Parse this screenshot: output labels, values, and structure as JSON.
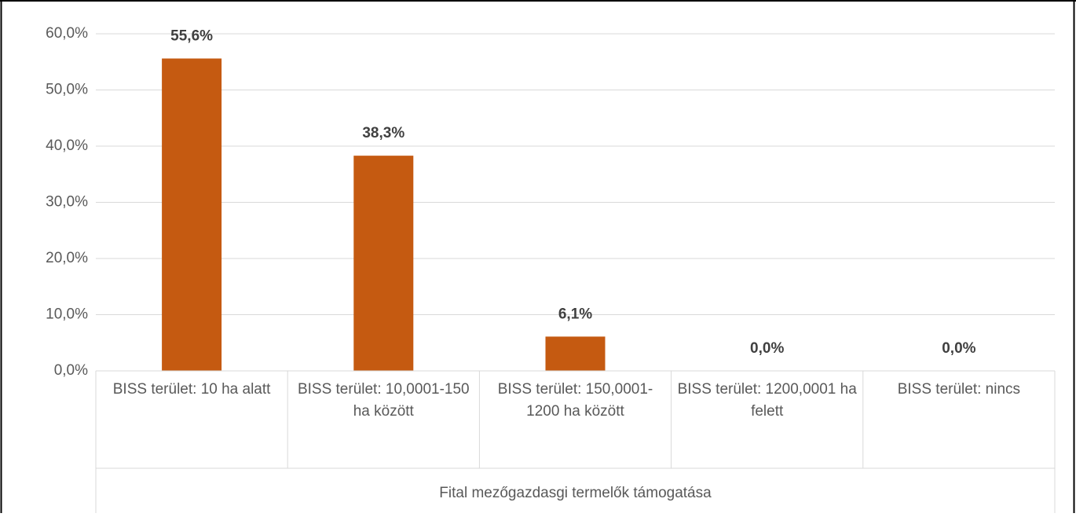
{
  "chart_data": {
    "type": "bar",
    "categories": [
      "BISS terület: 10 ha alatt",
      "BISS terület: 10,0001-150 ha között",
      "BISS terület: 150,0001-1200 ha között",
      "BISS terület: 1200,0001 ha felett",
      "BISS terület: nincs"
    ],
    "values": [
      55.6,
      38.3,
      6.1,
      0,
      0
    ],
    "value_labels": [
      "55,6%",
      "38,3%",
      "6,1%",
      "0,0%",
      "0,0%"
    ],
    "color": "#c55a11",
    "group_label": "Fital mezőgazdasgi termelők támogatása",
    "ylim": [
      0,
      60
    ],
    "yticks": [
      {
        "value": 0,
        "label": "0,0%"
      },
      {
        "value": 10,
        "label": "10,0%"
      },
      {
        "value": 20,
        "label": "20,0%"
      },
      {
        "value": 30,
        "label": "30,0%"
      },
      {
        "value": 40,
        "label": "40,0%"
      },
      {
        "value": 50,
        "label": "50,0%"
      },
      {
        "value": 60,
        "label": "60,0%"
      }
    ],
    "grid": true
  }
}
